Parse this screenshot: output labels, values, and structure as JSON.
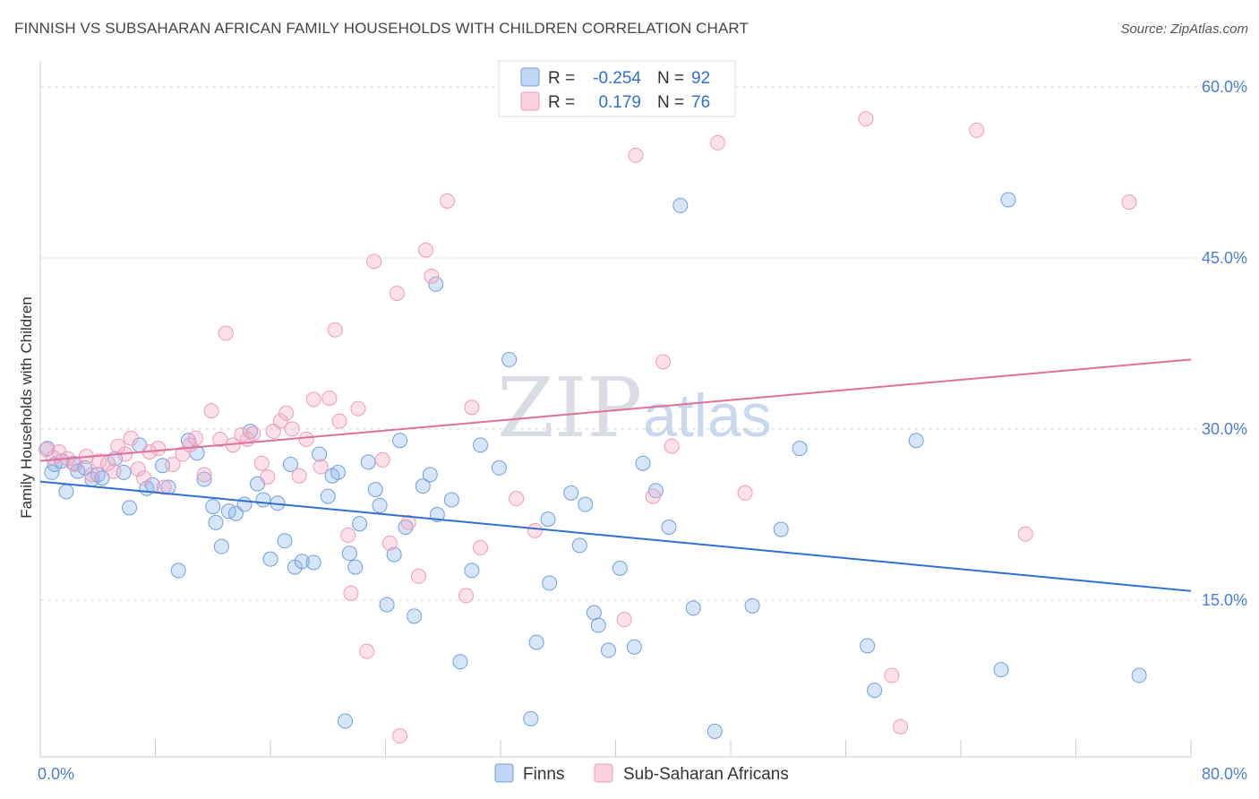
{
  "title": "FINNISH VS SUBSAHARAN AFRICAN FAMILY HOUSEHOLDS WITH CHILDREN CORRELATION CHART",
  "source": "Source: ZipAtlas.com",
  "watermark": {
    "zip": "ZIP",
    "atlas": "atlas"
  },
  "legend": {
    "rows": [
      {
        "r_label": "R =",
        "r_value": "-0.254",
        "n_label": "N =",
        "n_value": "92"
      },
      {
        "r_label": "R =",
        "r_value": "0.179",
        "n_label": "N =",
        "n_value": "76"
      }
    ]
  },
  "bottom_legend": {
    "finns": "Finns",
    "subsaharan": "Sub-Saharan Africans"
  },
  "colors": {
    "finns": "#6f9fe0",
    "finns_fill": "rgba(140,180,235,0.35)",
    "finns_line": "#2f6fd1",
    "subsaharan": "#f09ab8",
    "subsaharan_fill": "rgba(245,170,195,0.35)",
    "subsaharan_line": "#e0709a"
  },
  "chart_data": {
    "type": "scatter",
    "title": "FINNISH VS SUBSAHARAN AFRICAN FAMILY HOUSEHOLDS WITH CHILDREN CORRELATION CHART",
    "xlabel": "",
    "ylabel": "Family Households with Children",
    "xlim": [
      0,
      80
    ],
    "ylim": [
      0,
      60
    ],
    "x_tick_labels": [
      "0.0%",
      "80.0%"
    ],
    "y_ticks": [
      15,
      30,
      45,
      60
    ],
    "y_tick_labels": [
      "15.0%",
      "30.0%",
      "45.0%",
      "60.0%"
    ],
    "grid": "horizontal dashed",
    "legend_position": "top-center",
    "series": [
      {
        "name": "Finns",
        "R": -0.254,
        "N": 92,
        "trend": {
          "x": [
            0,
            80
          ],
          "y": [
            25.4,
            15.8
          ]
        },
        "points": [
          [
            0.5,
            28.3
          ],
          [
            0.8,
            26.2
          ],
          [
            1.0,
            26.9
          ],
          [
            1.5,
            27.2
          ],
          [
            1.8,
            24.5
          ],
          [
            2.3,
            27.0
          ],
          [
            2.6,
            26.3
          ],
          [
            3.1,
            26.6
          ],
          [
            3.6,
            25.6
          ],
          [
            4.0,
            26.0
          ],
          [
            4.3,
            25.7
          ],
          [
            5.2,
            27.4
          ],
          [
            5.8,
            26.2
          ],
          [
            6.2,
            23.1
          ],
          [
            6.9,
            28.6
          ],
          [
            7.4,
            24.8
          ],
          [
            7.8,
            25.1
          ],
          [
            8.5,
            26.8
          ],
          [
            8.9,
            24.9
          ],
          [
            9.6,
            17.6
          ],
          [
            10.3,
            29.0
          ],
          [
            10.9,
            27.9
          ],
          [
            11.4,
            25.6
          ],
          [
            12.0,
            23.2
          ],
          [
            12.2,
            21.8
          ],
          [
            12.6,
            19.7
          ],
          [
            13.1,
            22.8
          ],
          [
            13.6,
            22.6
          ],
          [
            14.2,
            23.4
          ],
          [
            14.6,
            29.8
          ],
          [
            15.1,
            25.2
          ],
          [
            15.5,
            23.8
          ],
          [
            16.0,
            18.6
          ],
          [
            16.5,
            23.5
          ],
          [
            17.0,
            20.2
          ],
          [
            17.4,
            26.9
          ],
          [
            17.7,
            17.9
          ],
          [
            18.2,
            18.4
          ],
          [
            19.0,
            18.3
          ],
          [
            19.4,
            27.8
          ],
          [
            20.0,
            24.1
          ],
          [
            20.3,
            25.9
          ],
          [
            20.7,
            26.2
          ],
          [
            21.5,
            19.1
          ],
          [
            21.9,
            17.9
          ],
          [
            22.2,
            21.7
          ],
          [
            22.8,
            27.1
          ],
          [
            23.3,
            24.7
          ],
          [
            23.6,
            23.3
          ],
          [
            24.1,
            14.6
          ],
          [
            24.6,
            19.0
          ],
          [
            25.0,
            29.0
          ],
          [
            25.4,
            21.4
          ],
          [
            26.0,
            13.6
          ],
          [
            26.6,
            25.0
          ],
          [
            27.1,
            26.0
          ],
          [
            27.6,
            22.5
          ],
          [
            28.6,
            23.8
          ],
          [
            29.2,
            9.6
          ],
          [
            30.0,
            17.6
          ],
          [
            30.6,
            28.6
          ],
          [
            31.9,
            26.6
          ],
          [
            32.6,
            36.1
          ],
          [
            34.1,
            4.6
          ],
          [
            34.5,
            11.3
          ],
          [
            35.3,
            22.1
          ],
          [
            35.4,
            16.5
          ],
          [
            36.9,
            24.4
          ],
          [
            37.5,
            19.8
          ],
          [
            37.9,
            23.4
          ],
          [
            38.5,
            13.9
          ],
          [
            38.8,
            12.8
          ],
          [
            39.5,
            10.6
          ],
          [
            40.3,
            17.8
          ],
          [
            41.3,
            10.9
          ],
          [
            41.9,
            27.0
          ],
          [
            42.8,
            24.6
          ],
          [
            43.7,
            21.4
          ],
          [
            44.5,
            49.6
          ],
          [
            45.4,
            14.3
          ],
          [
            46.9,
            3.5
          ],
          [
            49.5,
            14.5
          ],
          [
            51.5,
            21.2
          ],
          [
            52.8,
            28.3
          ],
          [
            57.5,
            11.0
          ],
          [
            58.0,
            7.1
          ],
          [
            60.9,
            29.0
          ],
          [
            66.8,
            8.9
          ],
          [
            67.3,
            50.1
          ],
          [
            76.4,
            8.4
          ],
          [
            27.5,
            42.7
          ],
          [
            21.2,
            4.4
          ]
        ]
      },
      {
        "name": "Sub-Saharan Africans",
        "R": 0.179,
        "N": 76,
        "trend": {
          "x": [
            0,
            80
          ],
          "y": [
            27.2,
            36.1
          ]
        },
        "points": [
          [
            0.4,
            28.2
          ],
          [
            0.9,
            27.5
          ],
          [
            1.3,
            28.0
          ],
          [
            1.9,
            27.4
          ],
          [
            2.4,
            26.9
          ],
          [
            3.2,
            27.6
          ],
          [
            3.6,
            26.0
          ],
          [
            4.1,
            27.2
          ],
          [
            4.7,
            27.0
          ],
          [
            5.1,
            26.3
          ],
          [
            5.4,
            28.5
          ],
          [
            5.9,
            27.8
          ],
          [
            6.3,
            29.2
          ],
          [
            6.8,
            26.5
          ],
          [
            7.2,
            25.7
          ],
          [
            7.6,
            28.0
          ],
          [
            8.2,
            28.3
          ],
          [
            8.6,
            24.9
          ],
          [
            9.2,
            26.9
          ],
          [
            9.9,
            27.8
          ],
          [
            10.4,
            28.6
          ],
          [
            10.8,
            29.2
          ],
          [
            11.4,
            26.0
          ],
          [
            11.9,
            31.6
          ],
          [
            12.5,
            29.1
          ],
          [
            12.9,
            38.4
          ],
          [
            13.4,
            28.6
          ],
          [
            14.0,
            29.5
          ],
          [
            14.4,
            29.1
          ],
          [
            14.8,
            29.6
          ],
          [
            15.4,
            27.0
          ],
          [
            15.8,
            25.8
          ],
          [
            16.2,
            29.8
          ],
          [
            16.7,
            30.7
          ],
          [
            17.1,
            31.4
          ],
          [
            17.5,
            30.0
          ],
          [
            18.0,
            25.9
          ],
          [
            18.5,
            29.1
          ],
          [
            19.0,
            32.6
          ],
          [
            19.5,
            26.7
          ],
          [
            20.1,
            32.7
          ],
          [
            20.5,
            38.7
          ],
          [
            20.8,
            30.7
          ],
          [
            21.4,
            20.7
          ],
          [
            21.6,
            15.6
          ],
          [
            22.1,
            31.8
          ],
          [
            22.7,
            10.5
          ],
          [
            23.2,
            44.7
          ],
          [
            23.8,
            27.3
          ],
          [
            24.3,
            20.0
          ],
          [
            24.8,
            41.9
          ],
          [
            25.0,
            3.1
          ],
          [
            25.6,
            21.8
          ],
          [
            26.3,
            17.1
          ],
          [
            26.8,
            45.7
          ],
          [
            27.2,
            43.4
          ],
          [
            28.3,
            50.0
          ],
          [
            29.6,
            15.4
          ],
          [
            30.0,
            31.9
          ],
          [
            30.6,
            19.6
          ],
          [
            33.1,
            23.9
          ],
          [
            34.4,
            21.1
          ],
          [
            35.4,
            58.3
          ],
          [
            40.6,
            13.3
          ],
          [
            41.4,
            54.0
          ],
          [
            42.6,
            24.1
          ],
          [
            43.3,
            35.9
          ],
          [
            43.9,
            28.5
          ],
          [
            47.1,
            55.1
          ],
          [
            49.0,
            24.4
          ],
          [
            57.4,
            57.2
          ],
          [
            59.2,
            8.4
          ],
          [
            59.8,
            3.9
          ],
          [
            65.1,
            56.2
          ],
          [
            68.5,
            20.8
          ],
          [
            75.7,
            49.9
          ]
        ]
      }
    ]
  }
}
